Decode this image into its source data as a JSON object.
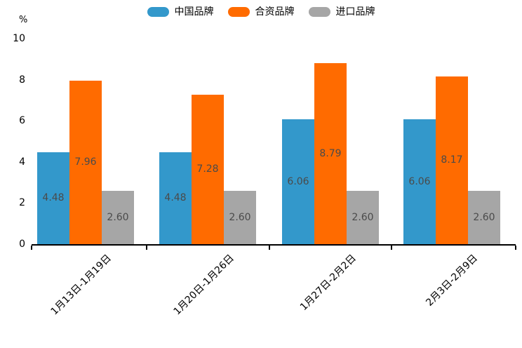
{
  "chart_data": {
    "type": "bar",
    "title": "",
    "unit_label": "%",
    "xlabel": "",
    "ylabel": "%",
    "categories": [
      "1月13日-1月19日",
      "1月20日-1月26日",
      "1月27日-2月2日",
      "2月3日-2月9日"
    ],
    "series": [
      {
        "name": "中国品牌",
        "color": "#3398CB",
        "values": [
          4.48,
          4.48,
          6.06,
          6.06
        ]
      },
      {
        "name": "合资品牌",
        "color": "#FF6B00",
        "values": [
          7.96,
          7.28,
          8.79,
          8.17
        ]
      },
      {
        "name": "进口品牌",
        "color": "#A6A6A6",
        "values": [
          2.6,
          2.6,
          2.6,
          2.6
        ]
      }
    ],
    "value_labels": [
      [
        "4.48",
        "7.96",
        "2.60"
      ],
      [
        "4.48",
        "7.28",
        "2.60"
      ],
      [
        "6.06",
        "8.79",
        "2.60"
      ],
      [
        "6.06",
        "8.17",
        "2.60"
      ]
    ],
    "ylim": [
      0,
      10
    ],
    "yticks": [
      0,
      2,
      4,
      6,
      8,
      10
    ],
    "legend_position": "top-center",
    "grid": false
  }
}
